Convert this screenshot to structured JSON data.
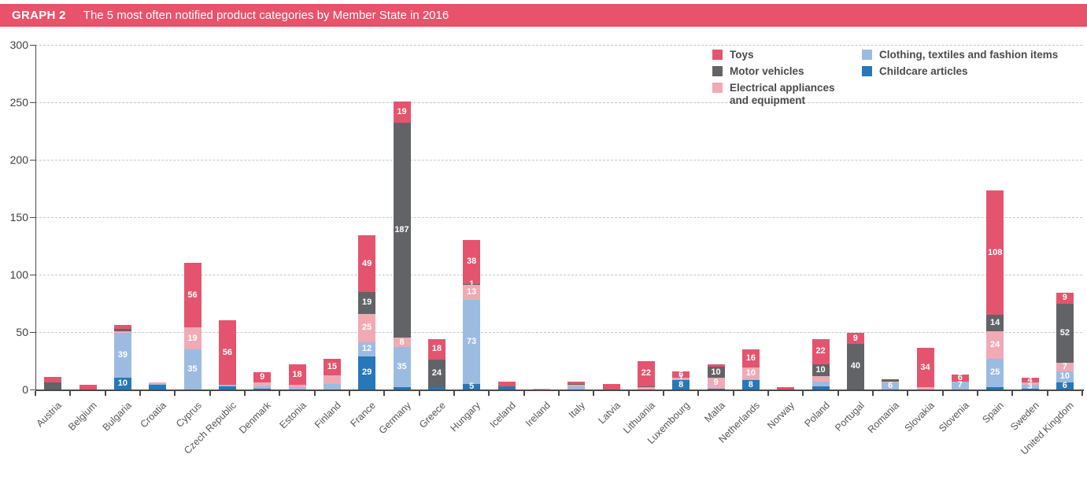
{
  "header": {
    "tag": "GRAPH 2",
    "title": "The 5 most often notified product categories by Member State in 2016",
    "background": "#e8536b"
  },
  "chart_data": {
    "type": "bar",
    "subtype": "stacked-vertical",
    "title": "The 5 most often notified product categories by Member State in 2016",
    "xlabel": "",
    "ylabel": "",
    "ylim": [
      0,
      300
    ],
    "yticks": [
      "0",
      "50",
      "100",
      "150",
      "200",
      "250",
      "300"
    ],
    "grid": "horizontal-dashed",
    "legend_position": "top-right-two-columns",
    "series": [
      {
        "id": "toys",
        "name": "Toys",
        "color": "#e4546e"
      },
      {
        "id": "motor",
        "name": "Motor vehicles",
        "color": "#626366"
      },
      {
        "id": "electrical",
        "name": "Electrical appliances and equipment",
        "color": "#f0aab4"
      },
      {
        "id": "clothing",
        "name": "Clothing, textiles and fashion items",
        "color": "#9cbbe0"
      },
      {
        "id": "childcare",
        "name": "Childcare articles",
        "color": "#2678b8"
      }
    ],
    "legend_columns": [
      [
        "toys",
        "motor",
        "electrical"
      ],
      [
        "clothing",
        "childcare"
      ]
    ],
    "legend_wrap": {
      "electrical": [
        "Electrical appliances",
        "and equipment"
      ]
    },
    "stack_order_bottom_to_top": [
      "childcare",
      "clothing",
      "electrical",
      "motor",
      "toys"
    ],
    "value_order_note": "values arrays follow stack_order_bottom_to_top: [childcare, clothing, electrical, motor, toys]",
    "countries": [
      {
        "name": "Austria",
        "values": [
          0,
          0,
          0,
          6,
          5
        ],
        "labels": [
          null,
          null,
          null,
          null,
          null
        ]
      },
      {
        "name": "Belgium",
        "values": [
          0,
          0,
          0,
          0,
          4
        ],
        "labels": [
          null,
          null,
          null,
          null,
          null
        ]
      },
      {
        "name": "Bulgaria",
        "values": [
          10,
          39,
          2,
          2,
          3
        ],
        "labels": [
          "10",
          "39",
          null,
          null,
          null
        ]
      },
      {
        "name": "Croatia",
        "values": [
          4,
          1,
          1,
          0,
          0
        ],
        "labels": [
          null,
          null,
          null,
          null,
          null
        ]
      },
      {
        "name": "Cyprus",
        "values": [
          0,
          35,
          19,
          0,
          56
        ],
        "labels": [
          null,
          "35",
          "19",
          null,
          "56"
        ]
      },
      {
        "name": "Czech Republic",
        "values": [
          3,
          1,
          0,
          0,
          56
        ],
        "labels": [
          null,
          null,
          null,
          null,
          "56"
        ]
      },
      {
        "name": "Denmark",
        "values": [
          1,
          2,
          3,
          0,
          9
        ],
        "labels": [
          null,
          null,
          null,
          null,
          "9"
        ]
      },
      {
        "name": "Estonia",
        "values": [
          0,
          2,
          2,
          0,
          18
        ],
        "labels": [
          null,
          null,
          null,
          null,
          "18"
        ]
      },
      {
        "name": "Finland",
        "values": [
          0,
          5,
          7,
          0,
          15
        ],
        "labels": [
          null,
          null,
          null,
          null,
          "15"
        ]
      },
      {
        "name": "France",
        "values": [
          29,
          12,
          25,
          19,
          49
        ],
        "labels": [
          "29",
          "12",
          "25",
          "19",
          "49"
        ]
      },
      {
        "name": "Germany",
        "values": [
          2,
          35,
          8,
          187,
          19
        ],
        "labels": [
          null,
          "35",
          "8",
          "187",
          "19"
        ]
      },
      {
        "name": "Greece",
        "values": [
          2,
          0,
          0,
          24,
          18
        ],
        "labels": [
          null,
          null,
          null,
          "24",
          "18"
        ]
      },
      {
        "name": "Hungary",
        "values": [
          5,
          73,
          13,
          1,
          38
        ],
        "labels": [
          "5",
          "73",
          "13",
          "1",
          "38"
        ]
      },
      {
        "name": "Iceland",
        "values": [
          3,
          0,
          0,
          0,
          4
        ],
        "labels": [
          null,
          null,
          null,
          null,
          null
        ]
      },
      {
        "name": "Ireland",
        "values": [
          0,
          0,
          1,
          0,
          0
        ],
        "labels": [
          null,
          null,
          null,
          null,
          null
        ]
      },
      {
        "name": "Italy",
        "values": [
          0,
          3,
          1,
          1,
          2
        ],
        "labels": [
          null,
          null,
          null,
          null,
          null
        ]
      },
      {
        "name": "Latvia",
        "values": [
          0,
          0,
          0,
          0,
          5
        ],
        "labels": [
          null,
          null,
          null,
          null,
          null
        ]
      },
      {
        "name": "Lithuania",
        "values": [
          0,
          0,
          2,
          1,
          22
        ],
        "labels": [
          null,
          null,
          null,
          null,
          "22"
        ]
      },
      {
        "name": "Luxembourg",
        "values": [
          8,
          1,
          1,
          0,
          6
        ],
        "labels": [
          "8",
          null,
          "1",
          null,
          "6"
        ]
      },
      {
        "name": "Malta",
        "values": [
          1,
          0,
          9,
          10,
          2
        ],
        "labels": [
          null,
          null,
          "9",
          "10",
          null
        ]
      },
      {
        "name": "Netherlands",
        "values": [
          8,
          1,
          10,
          0,
          16
        ],
        "labels": [
          "8",
          null,
          "10",
          null,
          "16"
        ]
      },
      {
        "name": "Norway",
        "values": [
          0,
          0,
          0,
          0,
          2
        ],
        "labels": [
          null,
          null,
          null,
          null,
          null
        ]
      },
      {
        "name": "Poland",
        "values": [
          3,
          4,
          5,
          10,
          22
        ],
        "labels": [
          null,
          null,
          null,
          "10",
          "22"
        ]
      },
      {
        "name": "Portugal",
        "values": [
          0,
          0,
          0,
          40,
          9
        ],
        "labels": [
          null,
          null,
          null,
          "40",
          "9"
        ]
      },
      {
        "name": "Romania",
        "values": [
          0,
          6,
          1,
          2,
          0
        ],
        "labels": [
          null,
          "6",
          null,
          null,
          null
        ]
      },
      {
        "name": "Slovakia",
        "values": [
          0,
          0,
          2,
          0,
          34
        ],
        "labels": [
          null,
          null,
          null,
          null,
          "34"
        ]
      },
      {
        "name": "Slovenia",
        "values": [
          0,
          7,
          0,
          0,
          6
        ],
        "labels": [
          null,
          "7",
          null,
          null,
          "6"
        ]
      },
      {
        "name": "Spain",
        "values": [
          2,
          25,
          24,
          14,
          108
        ],
        "labels": [
          null,
          "25",
          "24",
          "14",
          "108"
        ]
      },
      {
        "name": "Sweden",
        "values": [
          1,
          3,
          2,
          0,
          4
        ],
        "labels": [
          null,
          "3",
          null,
          null,
          "4"
        ]
      },
      {
        "name": "United Kingdom",
        "values": [
          6,
          10,
          7,
          52,
          9
        ],
        "labels": [
          "6",
          "10",
          "7",
          "52",
          "9"
        ]
      }
    ]
  }
}
